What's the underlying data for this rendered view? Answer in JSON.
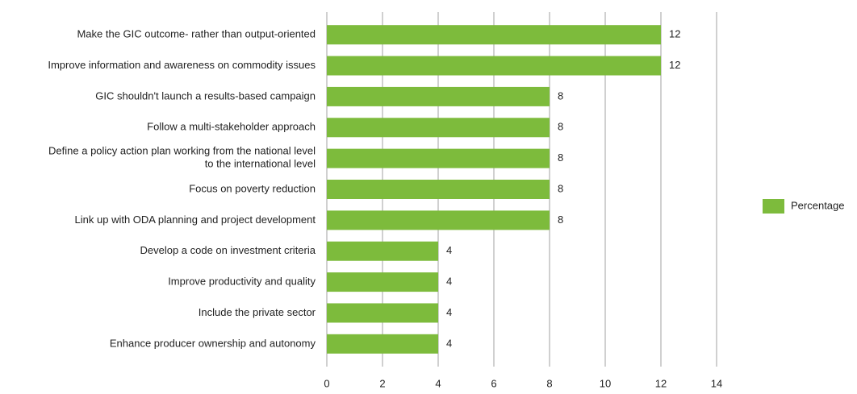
{
  "chart_data": {
    "type": "bar",
    "orientation": "horizontal",
    "categories": [
      "Make the GIC outcome- rather than output-oriented",
      "Improve information and awareness on commodity issues",
      "GIC shouldn't launch a results-based campaign",
      "Follow a multi-stakeholder approach",
      "Define a policy action plan working from the national level\nto the international level",
      "Focus on poverty reduction",
      "Link up with ODA planning and project development",
      "Develop a code on investment criteria",
      "Improve productivity and quality",
      "Include the private sector",
      "Enhance producer ownership and autonomy"
    ],
    "series": [
      {
        "name": "Percentage",
        "color": "#7dbb3c",
        "values": [
          12,
          12,
          8,
          8,
          8,
          8,
          8,
          4,
          4,
          4,
          4
        ]
      }
    ],
    "xlim": [
      0,
      14
    ],
    "xticks": [
      0,
      2,
      4,
      6,
      8,
      10,
      12,
      14
    ],
    "grid": true,
    "legend": "right"
  }
}
